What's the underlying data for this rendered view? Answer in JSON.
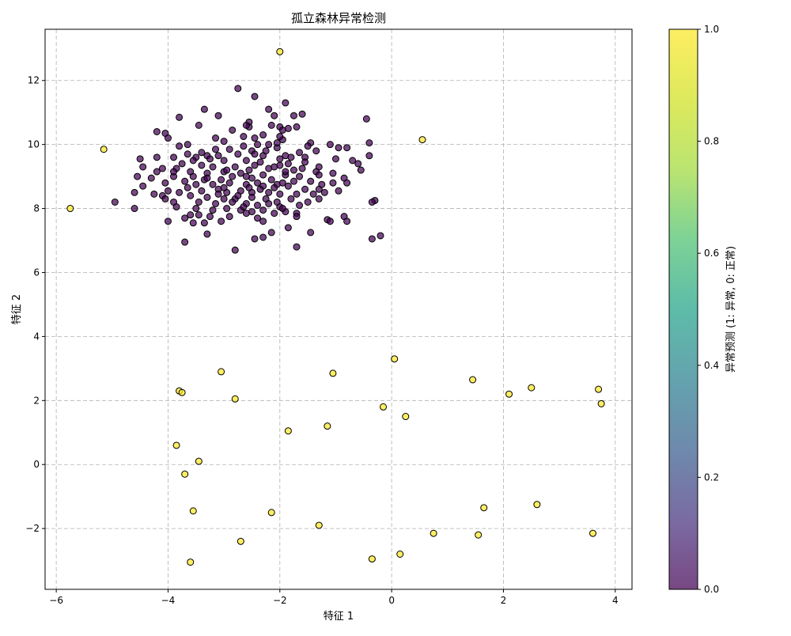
{
  "chart_data": {
    "type": "scatter",
    "title": "孤立森林异常检测",
    "xlabel": "特征 1",
    "ylabel": "特征 2",
    "xlim": [
      -6.2,
      4.3
    ],
    "ylim": [
      -3.9,
      13.6
    ],
    "xticks": [
      -6,
      -4,
      -2,
      0,
      2,
      4
    ],
    "xtick_labels": [
      "−6",
      "−4",
      "−2",
      "0",
      "2",
      "4"
    ],
    "yticks": [
      -2,
      0,
      2,
      4,
      6,
      8,
      10,
      12
    ],
    "ytick_labels": [
      "−2",
      "0",
      "2",
      "4",
      "6",
      "8",
      "10",
      "12"
    ],
    "grid": true,
    "colorbar": {
      "label": "异常预测 (1: 异常, 0: 正常)",
      "range": [
        0,
        1
      ],
      "ticks": [
        0.0,
        0.2,
        0.4,
        0.6,
        0.8,
        1.0
      ],
      "tick_labels": [
        "0.0",
        "0.2",
        "0.4",
        "0.6",
        "0.8",
        "1.0"
      ],
      "colormap": "viridis"
    },
    "colors": {
      "normal": "#440154",
      "anomaly": "#fde725",
      "edge": "#000000",
      "grid": "#b0b0b0"
    },
    "series": [
      {
        "value": 0,
        "points": [
          [
            -2.75,
            11.75
          ],
          [
            -2.45,
            11.5
          ],
          [
            -1.9,
            11.3
          ],
          [
            -3.35,
            11.1
          ],
          [
            -2.2,
            11.1
          ],
          [
            -1.6,
            10.95
          ],
          [
            -1.75,
            10.9
          ],
          [
            -3.1,
            10.9
          ],
          [
            -3.8,
            10.85
          ],
          [
            -2.1,
            10.9
          ],
          [
            -0.45,
            10.8
          ],
          [
            -2.55,
            10.7
          ],
          [
            -2.55,
            10.55
          ],
          [
            -2.6,
            10.6
          ],
          [
            -2.15,
            10.6
          ],
          [
            -2.0,
            10.55
          ],
          [
            -1.85,
            10.5
          ],
          [
            -3.45,
            10.6
          ],
          [
            -4.2,
            10.4
          ],
          [
            -4.05,
            10.35
          ],
          [
            -4.0,
            10.2
          ],
          [
            -1.95,
            10.45
          ],
          [
            -2.3,
            10.3
          ],
          [
            -2.65,
            10.25
          ],
          [
            -1.95,
            10.15
          ],
          [
            -1.45,
            10.05
          ],
          [
            -2.2,
            10.0
          ],
          [
            -3.0,
            10.1
          ],
          [
            -3.65,
            10.0
          ],
          [
            -3.8,
            9.95
          ],
          [
            -2.4,
            10.0
          ],
          [
            -0.4,
            10.05
          ],
          [
            -1.1,
            10.0
          ],
          [
            -2.65,
            9.95
          ],
          [
            -1.5,
            9.95
          ],
          [
            -0.95,
            9.9
          ],
          [
            -0.8,
            9.9
          ],
          [
            -3.15,
            9.85
          ],
          [
            -2.9,
            9.85
          ],
          [
            -2.5,
            9.8
          ],
          [
            -1.35,
            9.8
          ],
          [
            -1.65,
            9.75
          ],
          [
            -2.05,
            9.9
          ],
          [
            -2.25,
            9.8
          ],
          [
            -2.75,
            9.7
          ],
          [
            -3.1,
            9.65
          ],
          [
            -3.3,
            9.65
          ],
          [
            -3.5,
            9.6
          ],
          [
            -3.9,
            9.6
          ],
          [
            -4.2,
            9.6
          ],
          [
            -3.65,
            9.7
          ],
          [
            -2.45,
            9.7
          ],
          [
            -1.9,
            9.65
          ],
          [
            -1.55,
            9.6
          ],
          [
            -1.0,
            9.55
          ],
          [
            -0.7,
            9.5
          ],
          [
            -0.4,
            9.65
          ],
          [
            -4.5,
            9.55
          ],
          [
            -3.55,
            9.5
          ],
          [
            -3.0,
            9.5
          ],
          [
            -2.6,
            9.5
          ],
          [
            -2.35,
            9.45
          ],
          [
            -2.0,
            9.35
          ],
          [
            -1.85,
            9.4
          ],
          [
            -1.3,
            9.3
          ],
          [
            -0.6,
            9.4
          ],
          [
            -4.45,
            9.3
          ],
          [
            -4.1,
            9.25
          ],
          [
            -3.85,
            9.25
          ],
          [
            -3.4,
            9.35
          ],
          [
            -3.2,
            9.3
          ],
          [
            -2.8,
            9.3
          ],
          [
            -2.55,
            9.2
          ],
          [
            -2.2,
            9.25
          ],
          [
            -2.1,
            9.3
          ],
          [
            -1.75,
            9.2
          ],
          [
            -1.35,
            9.15
          ],
          [
            -1.05,
            9.1
          ],
          [
            -0.55,
            9.2
          ],
          [
            -4.2,
            9.15
          ],
          [
            -3.6,
            9.15
          ],
          [
            -3.0,
            9.15
          ],
          [
            -2.7,
            9.1
          ],
          [
            -2.3,
            9.05
          ],
          [
            -1.9,
            9.05
          ],
          [
            -1.65,
            9.0
          ],
          [
            -1.3,
            9.05
          ],
          [
            -0.85,
            8.95
          ],
          [
            -4.55,
            9.0
          ],
          [
            -4.3,
            8.95
          ],
          [
            -3.9,
            9.0
          ],
          [
            -3.35,
            8.9
          ],
          [
            -3.05,
            8.9
          ],
          [
            -2.5,
            8.95
          ],
          [
            -2.15,
            8.9
          ],
          [
            -1.75,
            8.85
          ],
          [
            -1.45,
            8.85
          ],
          [
            -1.05,
            8.8
          ],
          [
            -0.8,
            8.8
          ],
          [
            -4.45,
            8.7
          ],
          [
            -3.7,
            8.85
          ],
          [
            -3.5,
            8.75
          ],
          [
            -3.2,
            8.75
          ],
          [
            -2.9,
            8.8
          ],
          [
            -2.6,
            8.75
          ],
          [
            -2.4,
            8.8
          ],
          [
            -2.3,
            8.7
          ],
          [
            -2.05,
            8.75
          ],
          [
            -1.85,
            8.7
          ],
          [
            -1.55,
            8.6
          ],
          [
            -1.3,
            8.6
          ],
          [
            -1.2,
            8.5
          ],
          [
            -0.95,
            8.55
          ],
          [
            -4.6,
            8.5
          ],
          [
            -4.0,
            8.55
          ],
          [
            -3.8,
            8.5
          ],
          [
            -3.4,
            8.55
          ],
          [
            -3.1,
            8.6
          ],
          [
            -2.95,
            8.5
          ],
          [
            -2.7,
            8.55
          ],
          [
            -2.5,
            8.5
          ],
          [
            -2.2,
            8.5
          ],
          [
            -2.0,
            8.45
          ],
          [
            -1.7,
            8.45
          ],
          [
            -1.4,
            8.45
          ],
          [
            -4.25,
            8.45
          ],
          [
            -4.1,
            8.4
          ],
          [
            -3.6,
            8.4
          ],
          [
            -3.3,
            8.35
          ],
          [
            -3.0,
            8.3
          ],
          [
            -2.8,
            8.3
          ],
          [
            -2.5,
            8.35
          ],
          [
            -2.25,
            8.3
          ],
          [
            -2.05,
            8.2
          ],
          [
            -1.8,
            8.3
          ],
          [
            -1.3,
            8.3
          ],
          [
            -0.3,
            8.25
          ],
          [
            -0.35,
            8.2
          ],
          [
            -4.95,
            8.2
          ],
          [
            -4.05,
            8.3
          ],
          [
            -3.9,
            8.2
          ],
          [
            -3.45,
            8.2
          ],
          [
            -3.15,
            8.15
          ],
          [
            -2.85,
            8.2
          ],
          [
            -2.6,
            8.15
          ],
          [
            -2.4,
            8.1
          ],
          [
            -2.2,
            8.15
          ],
          [
            -2.0,
            8.05
          ],
          [
            -1.65,
            8.1
          ],
          [
            -1.5,
            8.2
          ],
          [
            -4.6,
            8.0
          ],
          [
            -3.85,
            8.05
          ],
          [
            -3.5,
            8.0
          ],
          [
            -3.2,
            7.95
          ],
          [
            -2.95,
            8.0
          ],
          [
            -2.7,
            7.95
          ],
          [
            -2.5,
            7.9
          ],
          [
            -2.3,
            7.95
          ],
          [
            -2.1,
            7.85
          ],
          [
            -1.9,
            7.9
          ],
          [
            -1.7,
            7.85
          ],
          [
            -3.6,
            7.8
          ],
          [
            -3.45,
            7.8
          ],
          [
            -3.25,
            7.75
          ],
          [
            -2.9,
            7.75
          ],
          [
            -2.6,
            7.85
          ],
          [
            -2.4,
            7.7
          ],
          [
            -1.7,
            7.75
          ],
          [
            -0.85,
            7.75
          ],
          [
            -0.8,
            7.6
          ],
          [
            -1.15,
            7.65
          ],
          [
            -1.1,
            7.6
          ],
          [
            -3.7,
            7.7
          ],
          [
            -3.05,
            7.6
          ],
          [
            -3.35,
            7.55
          ],
          [
            -3.55,
            7.55
          ],
          [
            -2.3,
            7.6
          ],
          [
            -1.85,
            7.4
          ],
          [
            -1.45,
            7.25
          ],
          [
            -4.0,
            7.6
          ],
          [
            -2.15,
            7.25
          ],
          [
            -3.3,
            7.2
          ],
          [
            -2.3,
            7.1
          ],
          [
            -2.45,
            7.05
          ],
          [
            -0.35,
            7.05
          ],
          [
            -0.2,
            7.15
          ],
          [
            -3.7,
            6.95
          ],
          [
            -1.7,
            6.8
          ],
          [
            -2.8,
            6.7
          ],
          [
            -3.3,
            9.1
          ],
          [
            -2.85,
            9.0
          ],
          [
            -2.0,
            9.55
          ],
          [
            -1.6,
            9.25
          ],
          [
            -3.75,
            9.4
          ],
          [
            -3.0,
            8.65
          ],
          [
            -2.35,
            8.6
          ],
          [
            -1.95,
            8.8
          ],
          [
            -3.55,
            9.0
          ],
          [
            -2.6,
            9.0
          ],
          [
            -2.75,
            8.4
          ],
          [
            -2.1,
            8.65
          ],
          [
            -1.55,
            9.45
          ],
          [
            -3.25,
            9.55
          ],
          [
            -2.95,
            9.2
          ],
          [
            -2.3,
            9.65
          ],
          [
            -1.95,
            8.0
          ],
          [
            -2.65,
            8.05
          ],
          [
            -3.1,
            8.45
          ],
          [
            -2.45,
            9.35
          ],
          [
            -1.8,
            9.6
          ],
          [
            -3.4,
            9.75
          ],
          [
            -2.0,
            10.25
          ],
          [
            -1.7,
            10.55
          ],
          [
            -2.45,
            10.2
          ],
          [
            -3.9,
            9.15
          ],
          [
            -1.25,
            8.75
          ],
          [
            -2.85,
            10.45
          ],
          [
            -3.15,
            10.2
          ],
          [
            -2.05,
            10.05
          ],
          [
            -4.05,
            8.8
          ],
          [
            -3.65,
            8.65
          ],
          [
            -2.55,
            8.65
          ],
          [
            -1.9,
            9.15
          ],
          [
            -3.3,
            8.95
          ]
        ]
      },
      {
        "value": 1,
        "points": [
          [
            -2.0,
            12.9
          ],
          [
            -5.15,
            9.85
          ],
          [
            0.55,
            10.15
          ],
          [
            -5.75,
            8.0
          ],
          [
            0.05,
            3.3
          ],
          [
            -3.05,
            2.9
          ],
          [
            -1.05,
            2.85
          ],
          [
            1.45,
            2.65
          ],
          [
            -3.8,
            2.3
          ],
          [
            -3.75,
            2.25
          ],
          [
            2.1,
            2.2
          ],
          [
            2.5,
            2.4
          ],
          [
            3.7,
            2.35
          ],
          [
            -2.8,
            2.05
          ],
          [
            3.75,
            1.9
          ],
          [
            -0.15,
            1.8
          ],
          [
            0.25,
            1.5
          ],
          [
            -1.15,
            1.2
          ],
          [
            -1.85,
            1.05
          ],
          [
            -3.85,
            0.6
          ],
          [
            -3.45,
            0.1
          ],
          [
            -3.7,
            -0.3
          ],
          [
            -3.55,
            -1.45
          ],
          [
            -2.15,
            -1.5
          ],
          [
            1.65,
            -1.35
          ],
          [
            2.6,
            -1.25
          ],
          [
            -1.3,
            -1.9
          ],
          [
            0.75,
            -2.15
          ],
          [
            1.55,
            -2.2
          ],
          [
            3.6,
            -2.15
          ],
          [
            -2.7,
            -2.4
          ],
          [
            0.15,
            -2.8
          ],
          [
            -0.35,
            -2.95
          ],
          [
            -3.6,
            -3.05
          ]
        ]
      }
    ]
  }
}
